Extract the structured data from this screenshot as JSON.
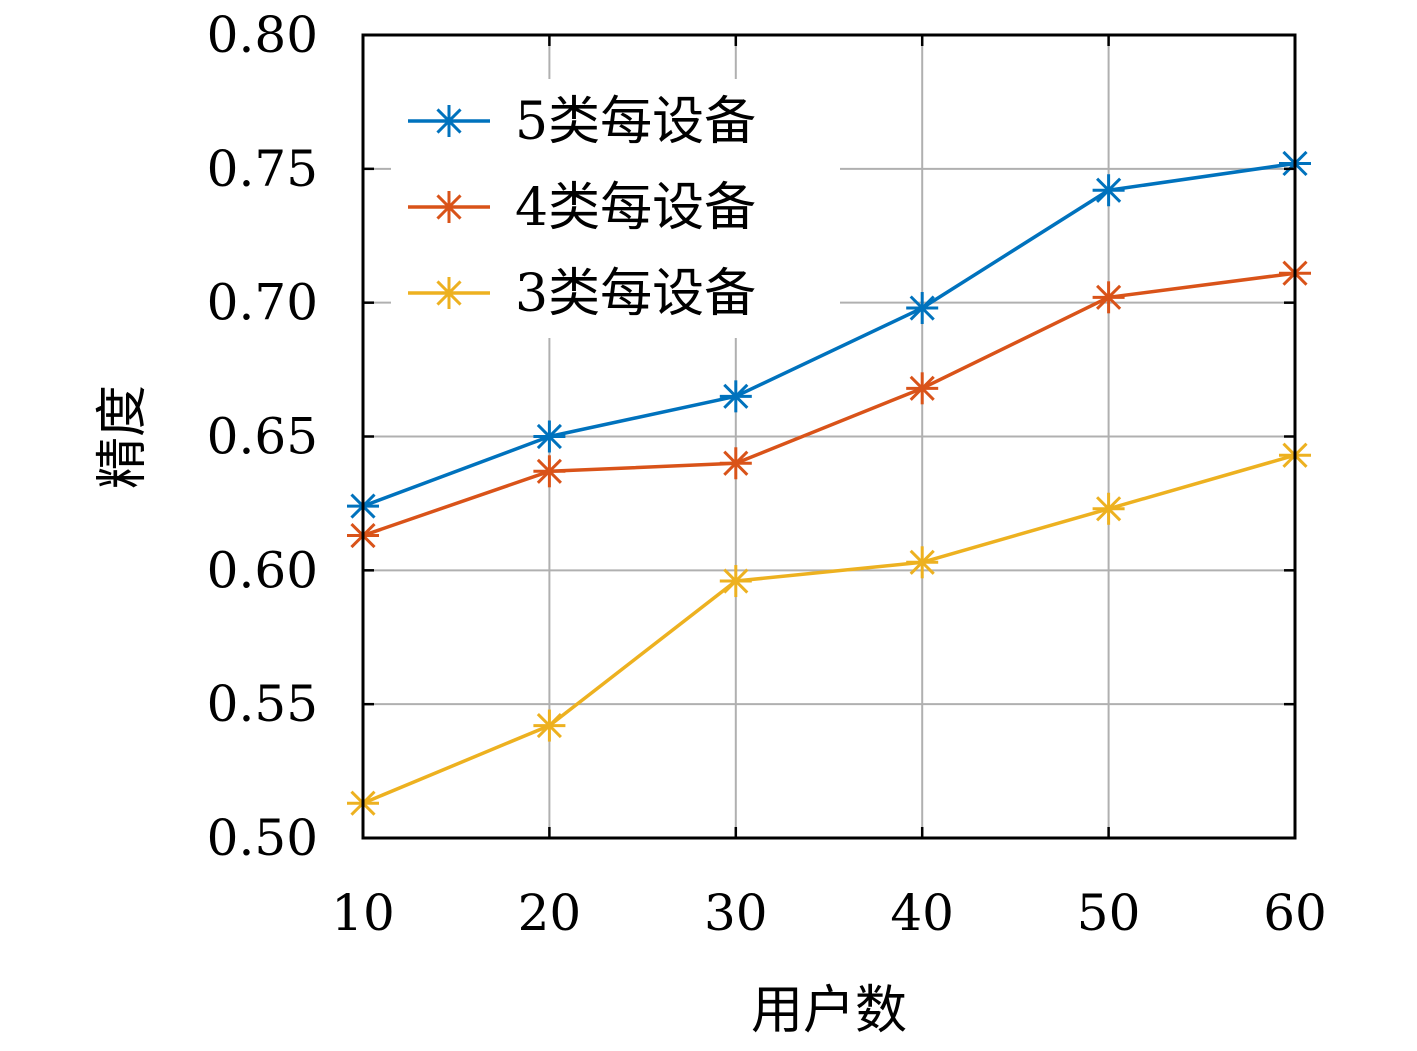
{
  "chart_data": {
    "type": "line",
    "xlabel": "用户数",
    "ylabel": "精度",
    "x": [
      10,
      20,
      30,
      40,
      50,
      60
    ],
    "xlim": [
      10,
      60
    ],
    "ylim": [
      0.5,
      0.8
    ],
    "xticks": [
      "10",
      "20",
      "30",
      "40",
      "50",
      "60"
    ],
    "yticks": [
      "0.50",
      "0.55",
      "0.60",
      "0.65",
      "0.70",
      "0.75",
      "0.80"
    ],
    "grid": true,
    "legend_position": "top-left",
    "marker": "asterisk",
    "series": [
      {
        "name": "5类每设备",
        "color": "#0072BD",
        "values": [
          0.624,
          0.65,
          0.665,
          0.698,
          0.742,
          0.752
        ]
      },
      {
        "name": "4类每设备",
        "color": "#D95319",
        "values": [
          0.613,
          0.637,
          0.64,
          0.668,
          0.702,
          0.711
        ]
      },
      {
        "name": "3类每设备",
        "color": "#EDB120",
        "values": [
          0.513,
          0.542,
          0.596,
          0.603,
          0.623,
          0.643
        ]
      }
    ]
  }
}
